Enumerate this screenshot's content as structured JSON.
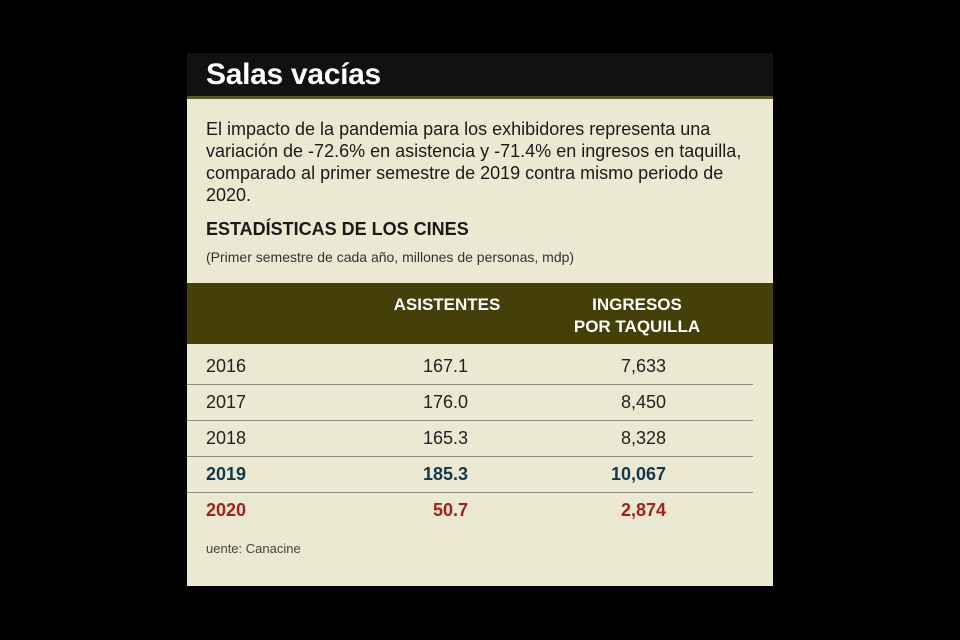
{
  "title": "Salas vacías",
  "description": "El impacto de la pandemia para los exhibidores representa una variación de -72.6% en asistencia y -71.4% en ingresos en taquilla, comparado al primer semestre de 2019 contra mismo periodo de 2020.",
  "subtitle": "ESTADÍSTICAS DE LOS CINES",
  "note": "(Primer semestre de cada año, millones de personas, mdp)",
  "source": "uente: Canacine",
  "colors": {
    "header_bar": "#45400a",
    "background": "#ece9d3",
    "highlight_2019": "#13384a",
    "highlight_2020": "#a3201b"
  },
  "chart_data": {
    "type": "table",
    "title": "ESTADÍSTICAS DE LOS CINES",
    "subtitle": "(Primer semestre de cada año, millones de personas, mdp)",
    "columns": [
      "",
      "ASISTENTES",
      "INGRESOS POR TAQUILLA"
    ],
    "header": {
      "asistentes": "ASISTENTES",
      "ingresos_line1": "INGRESOS",
      "ingresos_line2": "POR TAQUILLA"
    },
    "rows": [
      {
        "year": "2016",
        "asistentes": "167.1",
        "ingresos": "7,633",
        "highlight": "none"
      },
      {
        "year": "2017",
        "asistentes": "176.0",
        "ingresos": "8,450",
        "highlight": "none"
      },
      {
        "year": "2018",
        "asistentes": "165.3",
        "ingresos": "8,328",
        "highlight": "none"
      },
      {
        "year": "2019",
        "asistentes": "185.3",
        "ingresos": "10,067",
        "highlight": "blue"
      },
      {
        "year": "2020",
        "asistentes": "50.7",
        "ingresos": "2,874",
        "highlight": "red"
      }
    ],
    "series": [
      {
        "name": "ASISTENTES",
        "values": [
          167.1,
          176.0,
          165.3,
          185.3,
          50.7
        ]
      },
      {
        "name": "INGRESOS POR TAQUILLA",
        "values": [
          7633,
          8450,
          8328,
          10067,
          2874
        ]
      }
    ],
    "categories": [
      "2016",
      "2017",
      "2018",
      "2019",
      "2020"
    ]
  }
}
